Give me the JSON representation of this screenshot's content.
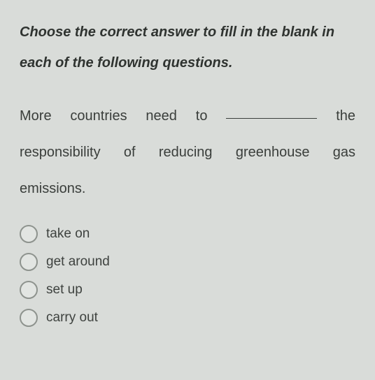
{
  "instruction": "Choose the correct answer to fill in the blank in each of the following questions.",
  "question": {
    "part1": "More countries need to",
    "part2": "the responsibility of reducing greenhouse gas",
    "part3": "emissions."
  },
  "options": [
    {
      "label": "take on"
    },
    {
      "label": "get around"
    },
    {
      "label": "set up"
    },
    {
      "label": "carry out"
    }
  ],
  "colors": {
    "background": "#d9dcd9",
    "text": "#3a3e3b",
    "radio_border": "#8e938e"
  },
  "typography": {
    "instruction_fontsize": 20,
    "question_fontsize": 20,
    "option_fontsize": 19
  }
}
